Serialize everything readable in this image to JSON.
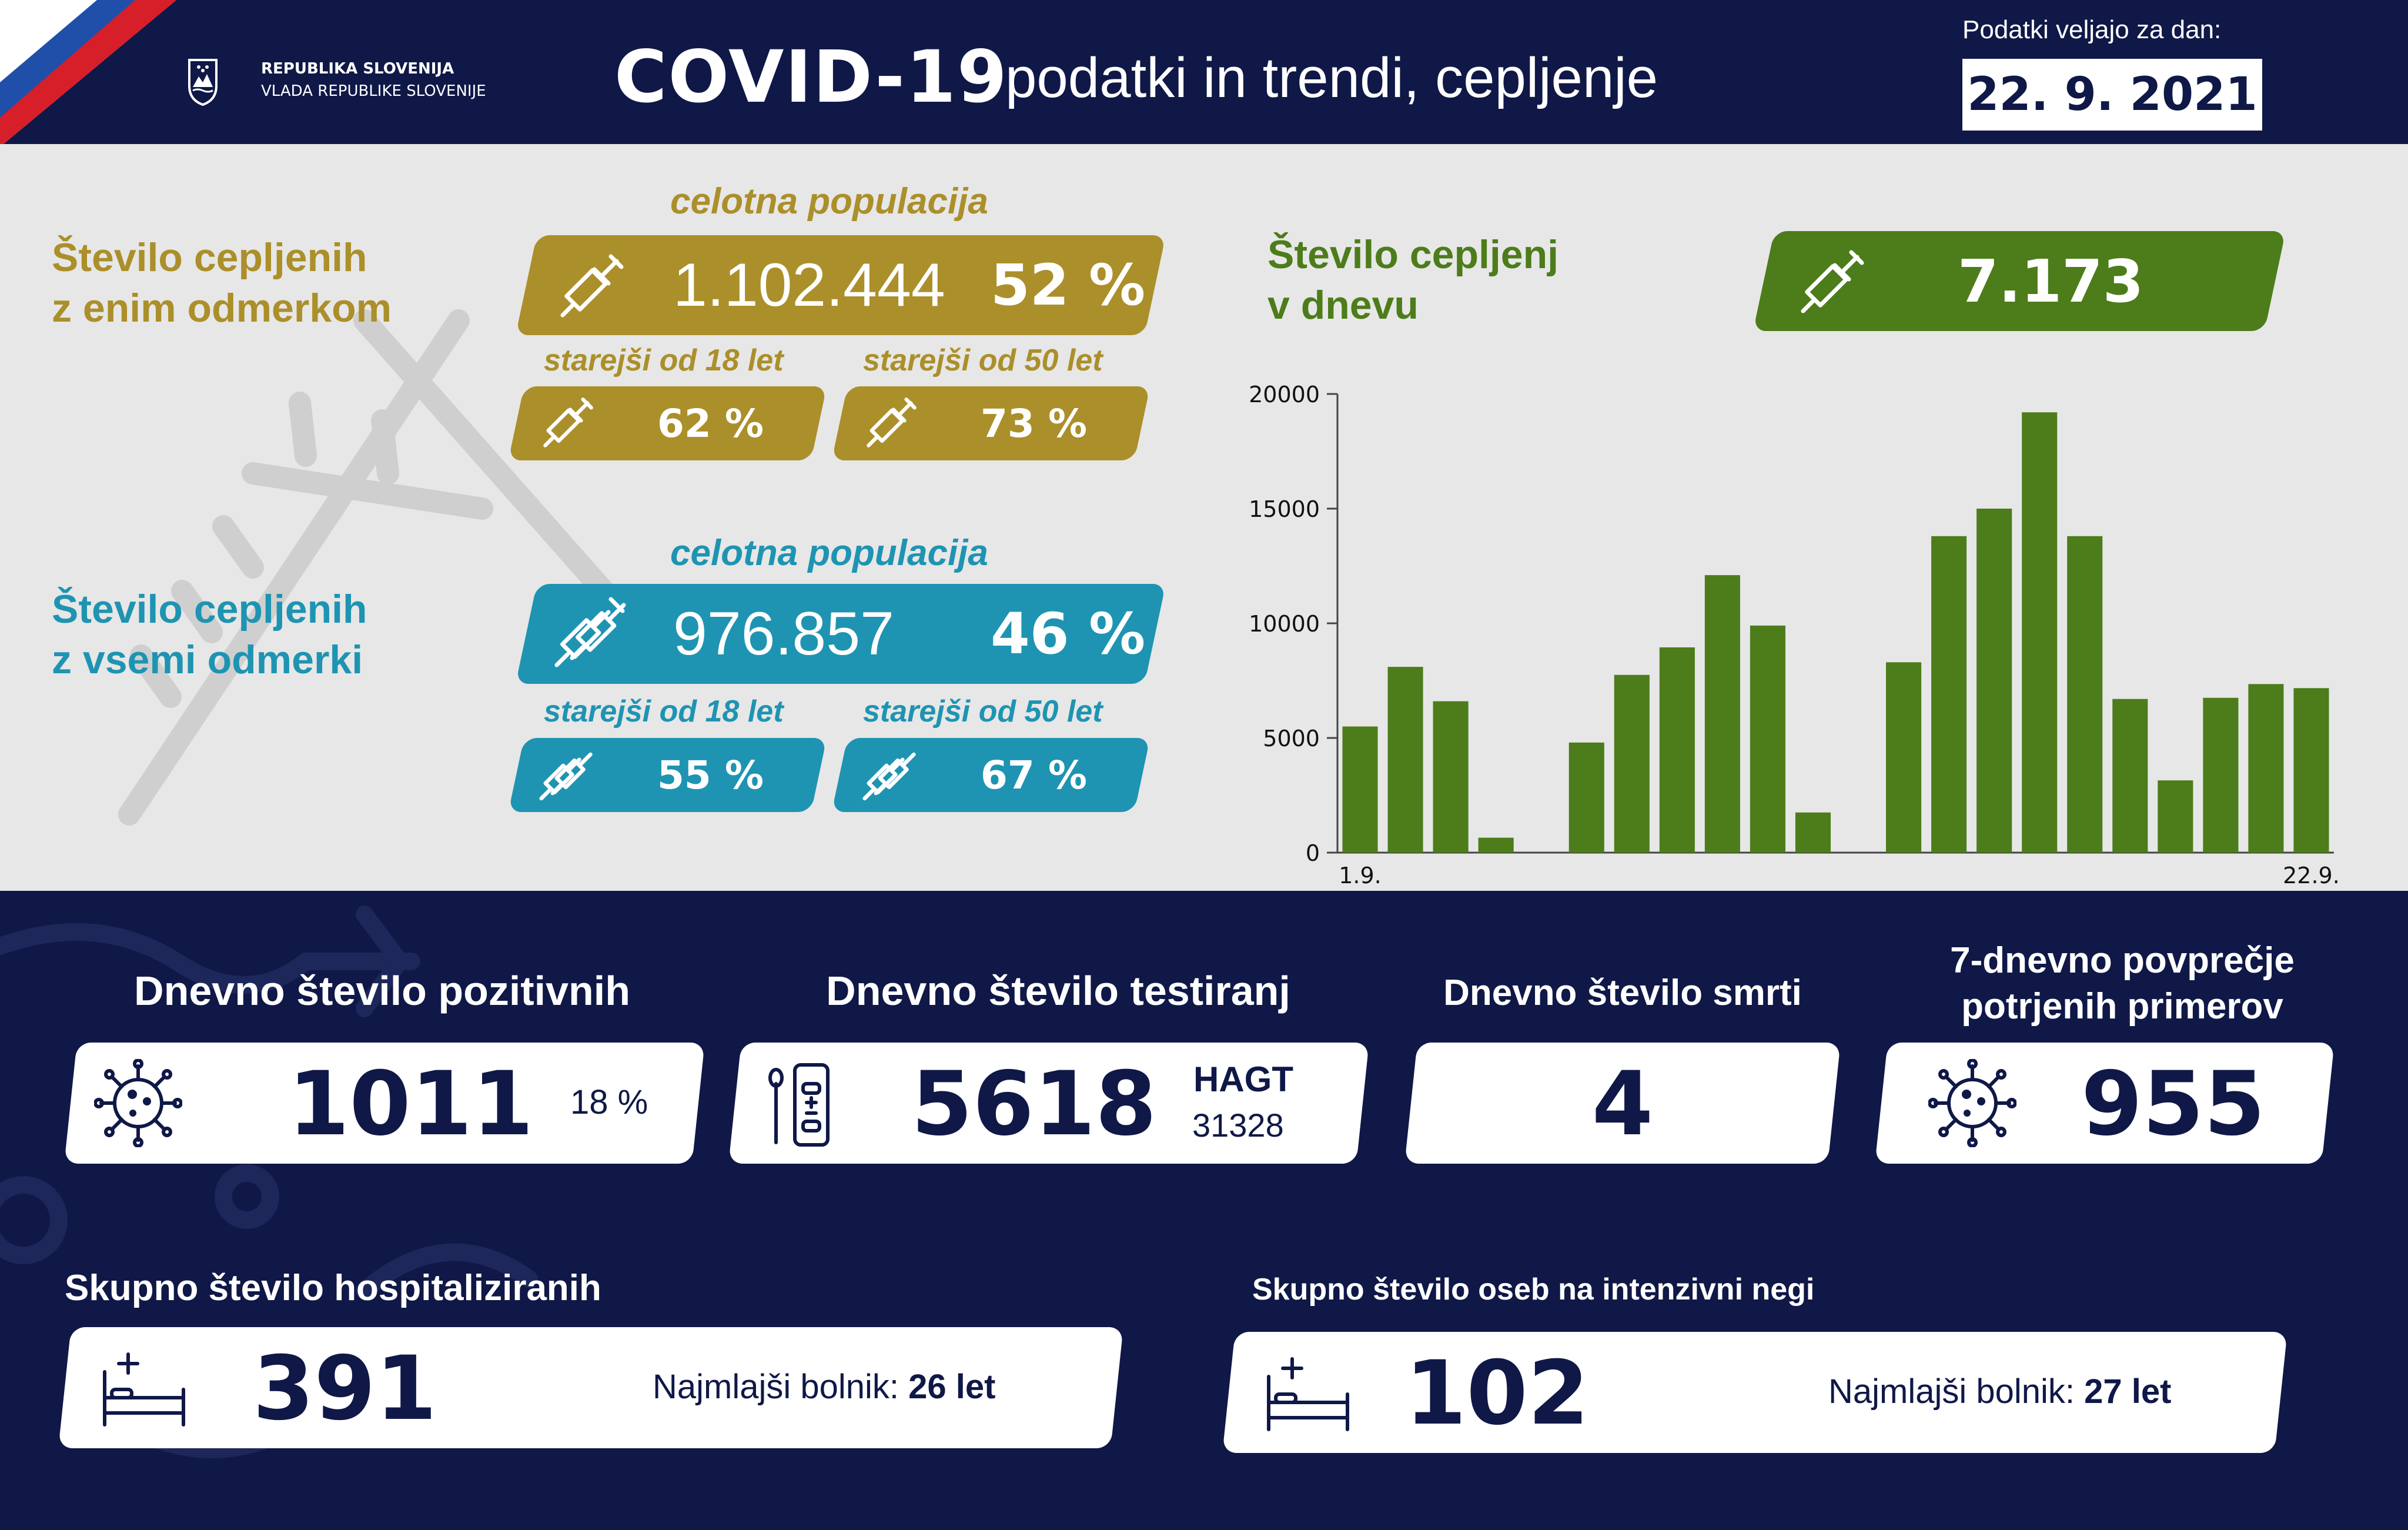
{
  "header": {
    "gov_line1": "REPUBLIKA SLOVENIJA",
    "gov_line2": "VLADA REPUBLIKE SLOVENIJE",
    "title_main": "COVID-19",
    "title_sub": "podatki in trendi, cepljenje",
    "date_label": "Podatki veljajo za dan:",
    "date_value": "22. 9. 2021"
  },
  "colors": {
    "navy": "#0f1847",
    "gold": "#ab8f2a",
    "teal": "#1e94b2",
    "green": "#4d7c1a",
    "panel": "#e7e7e7"
  },
  "vaccination": {
    "one_dose": {
      "title_line1": "Število cepljenih",
      "title_line2": "z enim odmerkom",
      "population_label": "celotna populacija",
      "count": "1.102.444",
      "percent": "52 %",
      "age18_label": "starejši od 18 let",
      "age18_percent": "62 %",
      "age50_label": "starejši od 50 let",
      "age50_percent": "73 %"
    },
    "all_doses": {
      "title_line1": "Število cepljenih",
      "title_line2": "z vsemi odmerki",
      "population_label": "celotna populacija",
      "count": "976.857",
      "percent": "46 %",
      "age18_label": "starejši od 18 let",
      "age18_percent": "55 %",
      "age50_label": "starejši od 50 let",
      "age50_percent": "67 %"
    },
    "daily": {
      "title_line1": "Število cepljenj",
      "title_line2": "v dnevu",
      "value": "7.173"
    }
  },
  "chart_data": {
    "type": "bar",
    "title": "",
    "xlabel": "",
    "ylabel": "",
    "ylim": [
      0,
      20000
    ],
    "yticks": [
      0,
      5000,
      10000,
      15000,
      20000
    ],
    "x_tick_labels": [
      "1.9.",
      "22.9."
    ],
    "grid": false,
    "color": "#4d7c1a",
    "categories": [
      "1.9.",
      "2.9.",
      "3.9.",
      "4.9.",
      "5.9.",
      "6.9.",
      "7.9.",
      "8.9.",
      "9.9.",
      "10.9.",
      "11.9.",
      "12.9.",
      "13.9.",
      "14.9.",
      "15.9.",
      "16.9.",
      "17.9.",
      "18.9.",
      "19.9.",
      "20.9.",
      "21.9.",
      "22.9."
    ],
    "values": [
      5500,
      8100,
      6600,
      650,
      0,
      4800,
      7750,
      8950,
      12100,
      9900,
      1750,
      0,
      8300,
      13800,
      15000,
      19200,
      13800,
      6700,
      3150,
      6750,
      7350,
      7173
    ]
  },
  "stats": {
    "positive": {
      "title": "Dnevno število pozitivnih",
      "value": "1011",
      "percent": "18 %"
    },
    "tests": {
      "title": "Dnevno število testiranj",
      "value": "5618",
      "hagt_label": "HAGT",
      "hagt_value": "31328"
    },
    "deaths": {
      "title": "Dnevno število smrti",
      "value": "4"
    },
    "avg7": {
      "title_line1": "7-dnevno povprečje",
      "title_line2": "potrjenih primerov",
      "value": "955"
    },
    "hospitalized": {
      "title": "Skupno število hospitaliziranih",
      "value": "391",
      "youngest_label": "Najmlajši bolnik:",
      "youngest_value": "26 let"
    },
    "icu": {
      "title": "Skupno število oseb na intenzivni negi",
      "value": "102",
      "youngest_label": "Najmlajši bolnik:",
      "youngest_value": "27 let"
    }
  }
}
